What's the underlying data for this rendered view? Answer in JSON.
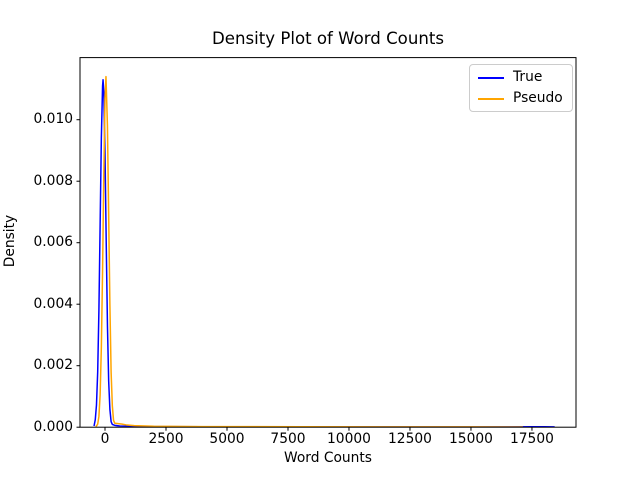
{
  "figure": {
    "background": "#ffffff",
    "text_color": "#000000",
    "spine_color": "#000000"
  },
  "chart_data": {
    "type": "line",
    "title": "Density Plot of Word Counts",
    "xlabel": "Word Counts",
    "ylabel": "Density",
    "grid": false,
    "xlim": [
      -1025,
      19305
    ],
    "ylim": [
      0,
      0.01202
    ],
    "x_ticks": [
      0,
      2500,
      5000,
      7500,
      10000,
      12500,
      15000,
      17500
    ],
    "x_tick_labels": [
      "0",
      "2500",
      "5000",
      "7500",
      "10000",
      "12500",
      "15000",
      "17500"
    ],
    "y_ticks": [
      0,
      0.002,
      0.004,
      0.006,
      0.008,
      0.01
    ],
    "y_tick_labels": [
      "0.000",
      "0.002",
      "0.004",
      "0.006",
      "0.008",
      "0.010"
    ],
    "legend": {
      "position": "upper right",
      "entries": [
        {
          "label": "True",
          "color": "#0000ff"
        },
        {
          "label": "Pseudo",
          "color": "#ffa500"
        }
      ]
    },
    "series": [
      {
        "name": "True",
        "color": "#0000ff",
        "linewidth": 1.5,
        "points": [
          [
            -450,
            4e-05
          ],
          [
            -400,
            0.00024
          ],
          [
            -350,
            0.00072
          ],
          [
            -300,
            0.0018
          ],
          [
            -250,
            0.0038
          ],
          [
            -200,
            0.0066
          ],
          [
            -150,
            0.0094
          ],
          [
            -100,
            0.0111
          ],
          [
            -80,
            0.0113
          ],
          [
            -50,
            0.0109
          ],
          [
            0,
            0.0089
          ],
          [
            50,
            0.006
          ],
          [
            100,
            0.0033
          ],
          [
            150,
            0.0015
          ],
          [
            200,
            0.00058
          ],
          [
            250,
            0.00018
          ],
          [
            300,
            9e-05
          ],
          [
            400,
            6e-05
          ],
          [
            600,
            4e-05
          ],
          [
            1000,
            3e-05
          ],
          [
            2000,
            2e-05
          ],
          [
            4000,
            1.5e-05
          ],
          [
            8000,
            1e-05
          ],
          [
            12000,
            1e-05
          ],
          [
            16000,
            1e-05
          ],
          [
            17500,
            1.5e-05
          ],
          [
            18000,
            1.5e-05
          ],
          [
            18430,
            1e-05
          ]
        ]
      },
      {
        "name": "Pseudo",
        "color": "#ffa500",
        "linewidth": 1.5,
        "points": [
          [
            -380,
            2e-05
          ],
          [
            -350,
            4e-05
          ],
          [
            -300,
            0.0001
          ],
          [
            -250,
            0.00035
          ],
          [
            -200,
            0.00105
          ],
          [
            -150,
            0.0026
          ],
          [
            -100,
            0.0051
          ],
          [
            -50,
            0.0082
          ],
          [
            0,
            0.0107
          ],
          [
            40,
            0.0114
          ],
          [
            100,
            0.0098
          ],
          [
            150,
            0.0069
          ],
          [
            200,
            0.004
          ],
          [
            250,
            0.0018
          ],
          [
            300,
            0.0007
          ],
          [
            350,
            0.00022
          ],
          [
            400,
            0.00013
          ],
          [
            500,
            0.00012
          ],
          [
            700,
            0.0001
          ],
          [
            900,
            7e-05
          ],
          [
            1200,
            5e-05
          ],
          [
            2000,
            3e-05
          ],
          [
            4000,
            2e-05
          ],
          [
            8000,
            1.5e-05
          ],
          [
            12000,
            1e-05
          ],
          [
            15000,
            1e-05
          ],
          [
            17130,
            5e-06
          ]
        ]
      }
    ]
  }
}
